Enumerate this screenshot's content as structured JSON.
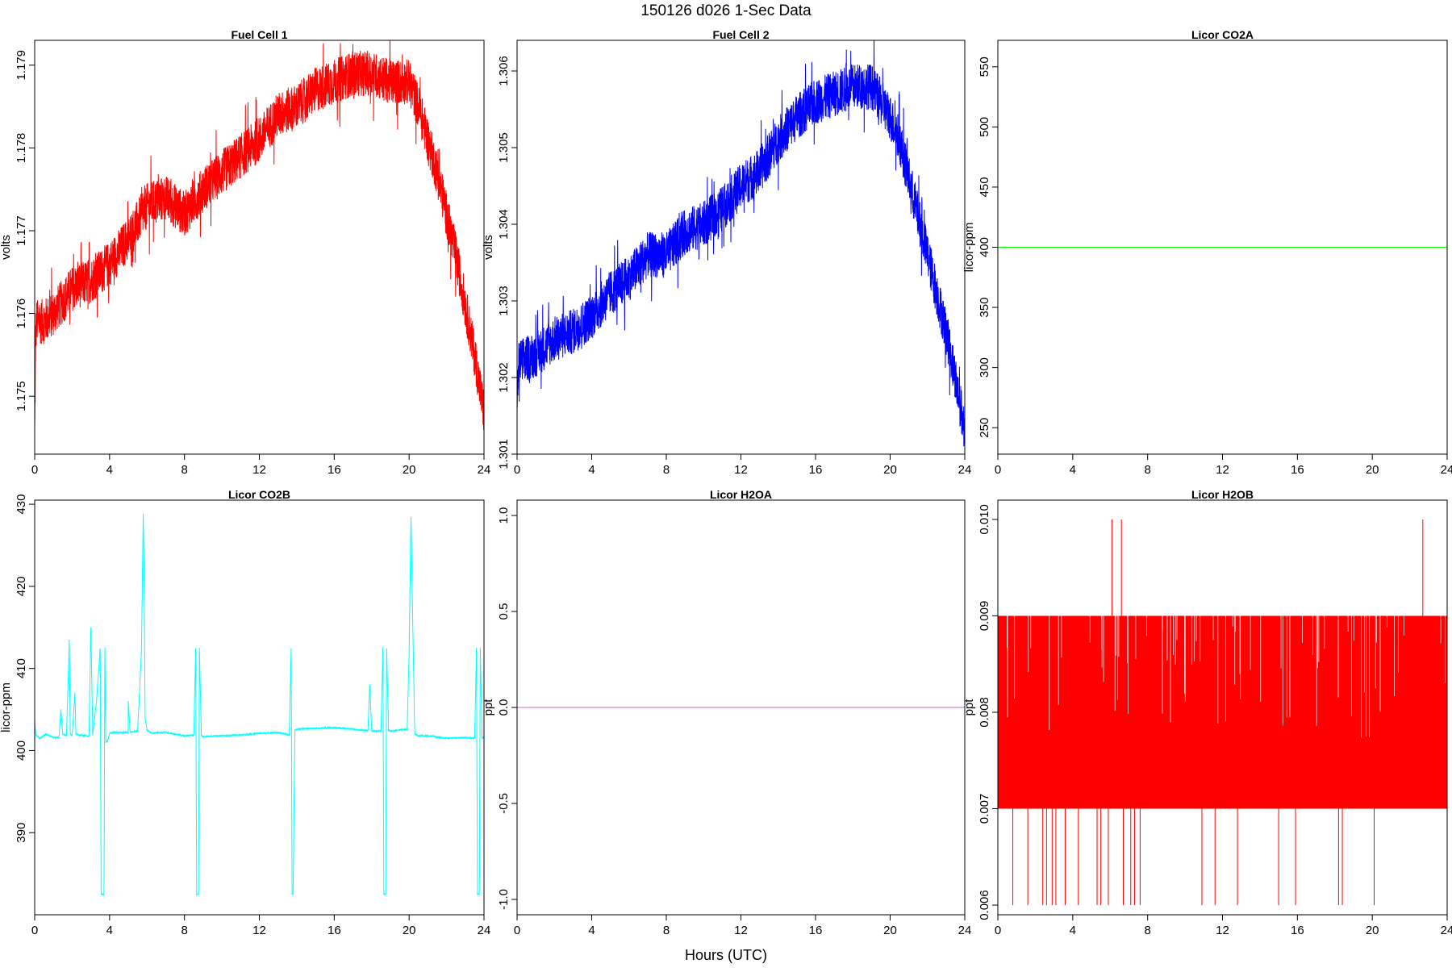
{
  "figure": {
    "title": "150126   d026   1-Sec Data",
    "xlabel": "Hours (UTC)",
    "background": "#ffffff",
    "axis_color": "#000000"
  },
  "chart_data": [
    {
      "type": "line",
      "title": "Fuel Cell 1",
      "xlabel": "",
      "ylabel": "volts",
      "xlim": [
        0,
        24
      ],
      "ylim": [
        1.1743,
        1.1793
      ],
      "xticks": [
        0,
        4,
        8,
        12,
        16,
        20,
        24
      ],
      "yticks": [
        1.175,
        1.176,
        1.177,
        1.178,
        1.179
      ],
      "ytick_labels": [
        "1.175",
        "1.176",
        "1.177",
        "1.178",
        "1.179"
      ],
      "grid": false,
      "series": [
        {
          "color": "#ff0000",
          "noise": 0.00055,
          "x": [
            0,
            0.05,
            0.1,
            0.5,
            1,
            2,
            3,
            4,
            5,
            6,
            7,
            8,
            9,
            10,
            11,
            12,
            13,
            14,
            15,
            16,
            17,
            18,
            19,
            19.5,
            20,
            20.5,
            21,
            21.5,
            22,
            22.5,
            23,
            23.5,
            24
          ],
          "y": [
            1.1745,
            1.1757,
            1.1759,
            1.1759,
            1.176,
            1.1763,
            1.1764,
            1.1766,
            1.1769,
            1.1773,
            1.1774,
            1.1772,
            1.1775,
            1.1777,
            1.1779,
            1.1781,
            1.1784,
            1.1785,
            1.1787,
            1.1788,
            1.1789,
            1.1789,
            1.1788,
            1.1788,
            1.1788,
            1.1785,
            1.1781,
            1.1777,
            1.1772,
            1.1767,
            1.1761,
            1.1755,
            1.1748
          ]
        }
      ]
    },
    {
      "type": "line",
      "title": "Fuel Cell 2",
      "xlabel": "",
      "ylabel": "volts",
      "xlim": [
        0,
        24
      ],
      "ylim": [
        1.301,
        1.3064
      ],
      "xticks": [
        0,
        4,
        8,
        12,
        16,
        20,
        24
      ],
      "yticks": [
        1.301,
        1.302,
        1.303,
        1.304,
        1.305,
        1.306
      ],
      "ytick_labels": [
        "1.301",
        "1.302",
        "1.303",
        "1.304",
        "1.305",
        "1.306"
      ],
      "grid": false,
      "series": [
        {
          "color": "#0000ff",
          "noise": 0.0006,
          "x": [
            0,
            0.1,
            1,
            2,
            3,
            4,
            5,
            6,
            7,
            8,
            9,
            10,
            11,
            12,
            13,
            14,
            15,
            16,
            17,
            18,
            19,
            19.5,
            20,
            20.5,
            21,
            21.5,
            22,
            22.5,
            23,
            23.5,
            24
          ],
          "y": [
            1.3017,
            1.3022,
            1.3023,
            1.3025,
            1.3026,
            1.3028,
            1.3031,
            1.3033,
            1.3036,
            1.3036,
            1.3039,
            1.304,
            1.3042,
            1.3045,
            1.3047,
            1.3051,
            1.3054,
            1.3056,
            1.3057,
            1.3058,
            1.3058,
            1.3056,
            1.3054,
            1.3051,
            1.3046,
            1.3041,
            1.3036,
            1.3031,
            1.3026,
            1.302,
            1.3013
          ]
        }
      ]
    },
    {
      "type": "line",
      "title": "Licor CO2A",
      "xlabel": "",
      "ylabel": "licor-ppm",
      "xlim": [
        0,
        24
      ],
      "ylim": [
        228,
        572
      ],
      "xticks": [
        0,
        4,
        8,
        12,
        16,
        20,
        24
      ],
      "yticks": [
        250,
        300,
        350,
        400,
        450,
        500,
        550
      ],
      "ytick_labels": [
        "250",
        "300",
        "350",
        "400",
        "450",
        "500",
        "550"
      ],
      "grid": false,
      "series": [
        {
          "color": "#00ff00",
          "noise": 0,
          "x": [
            0,
            24
          ],
          "y": [
            400,
            400
          ]
        }
      ]
    },
    {
      "type": "line",
      "title": "Licor CO2B",
      "xlabel": "",
      "ylabel": "licor-ppm",
      "xlim": [
        0,
        24
      ],
      "ylim": [
        380,
        430.5
      ],
      "xticks": [
        0,
        4,
        8,
        12,
        16,
        20,
        24
      ],
      "yticks": [
        390,
        400,
        410,
        420,
        430
      ],
      "ytick_labels": [
        "390",
        "400",
        "410",
        "420",
        "430"
      ],
      "grid": false,
      "series": [
        {
          "color": "#00ffff",
          "noise": 0.15,
          "x": [
            0,
            0.05,
            0.1,
            0.3,
            0.6,
            1,
            1.3,
            1.4,
            1.5,
            1.7,
            1.85,
            1.9,
            2,
            2.15,
            2.2,
            2.3,
            2.9,
            3,
            3.1,
            3.3,
            3.5,
            3.55,
            3.7,
            3.75,
            3.8,
            3.9,
            4,
            4.2,
            5,
            5,
            5.1,
            5.5,
            5.7,
            5.8,
            5.85,
            5.9,
            6.0,
            6.1,
            6.3,
            6.5,
            7,
            8,
            8.5,
            8.6,
            8.65,
            8.75,
            8.8,
            8.9,
            9,
            10,
            11,
            12,
            13,
            13.6,
            13.7,
            13.75,
            13.8,
            13.9,
            14,
            15,
            16,
            17,
            17.8,
            17.9,
            18,
            18.5,
            18.6,
            18.65,
            18.75,
            18.8,
            18.9,
            19,
            19.5,
            19.9,
            20,
            20.1,
            20.2,
            20.3,
            20.5,
            21,
            22,
            23,
            23.5,
            23.6,
            23.65,
            23.75,
            23.8,
            23.9,
            24
          ],
          "y": [
            403.8,
            402,
            401.8,
            401.5,
            402,
            401.6,
            401.6,
            405,
            402,
            401.8,
            413.5,
            402,
            401.8,
            407,
            402,
            401.9,
            401.8,
            415,
            401.9,
            406,
            412.5,
            382.5,
            382.5,
            412.5,
            401,
            401.2,
            402.1,
            402.2,
            402.2,
            406,
            402.2,
            402.4,
            412,
            428.8,
            420,
            404,
            402.5,
            402.3,
            402.1,
            402.2,
            402.2,
            401.8,
            401.9,
            412.5,
            382.5,
            382.5,
            412.5,
            401.9,
            401.7,
            401.8,
            401.9,
            402.1,
            402.2,
            401.9,
            412.5,
            382.5,
            382.5,
            402.5,
            402.6,
            402.7,
            402.8,
            402.6,
            402.4,
            408,
            402.4,
            402.4,
            412.5,
            382.5,
            382.5,
            412.5,
            402.5,
            402.4,
            402.5,
            402.6,
            412,
            428.5,
            415,
            402,
            401.8,
            401.8,
            401.5,
            401.6,
            401.5,
            412.5,
            382.5,
            382.5,
            412.5,
            401.5,
            401.7
          ]
        }
      ]
    },
    {
      "type": "line",
      "title": "Licor H2OA",
      "xlabel": "",
      "ylabel": "ppt",
      "xlim": [
        0,
        24
      ],
      "ylim": [
        -1.08,
        1.08
      ],
      "xticks": [
        0,
        4,
        8,
        12,
        16,
        20,
        24
      ],
      "yticks": [
        -1.0,
        -0.5,
        0.0,
        0.5,
        1.0
      ],
      "ytick_labels": [
        "-1.0",
        "-0.5",
        "0.0",
        "0.5",
        "1.0"
      ],
      "grid": false,
      "series": [
        {
          "color": "#cc66cc",
          "noise": 0,
          "x": [
            0,
            24
          ],
          "y": [
            0,
            0
          ]
        }
      ]
    },
    {
      "type": "line",
      "title": "Licor H2OB",
      "xlabel": "",
      "ylabel": "ppt",
      "xlim": [
        0,
        24
      ],
      "ylim": [
        0.0059,
        0.0102
      ],
      "xticks": [
        0,
        4,
        8,
        12,
        16,
        20,
        24
      ],
      "yticks": [
        0.006,
        0.007,
        0.008,
        0.009,
        0.01
      ],
      "ytick_labels": [
        "0.006",
        "0.007",
        "0.008",
        "0.009",
        "0.010"
      ],
      "grid": false,
      "band": {
        "color": "#ff0000",
        "x": [
          0,
          24
        ],
        "y": [
          0.007,
          0.009
        ]
      },
      "spikes": {
        "color": "#ff0000",
        "up_x": [
          6.1,
          6.6,
          22.7
        ],
        "up_y": 0.01,
        "down_x": [
          0.8,
          1.6,
          2.4,
          2.6,
          2.9,
          3.1,
          3.6,
          4.3,
          5.3,
          5.5,
          5.9,
          6.7,
          7.1,
          7.3,
          7.6,
          10.9,
          11.6,
          12.8,
          15.0,
          15.9,
          18.2,
          18.4,
          20.1
        ],
        "down_y": 0.006
      },
      "series": []
    }
  ]
}
